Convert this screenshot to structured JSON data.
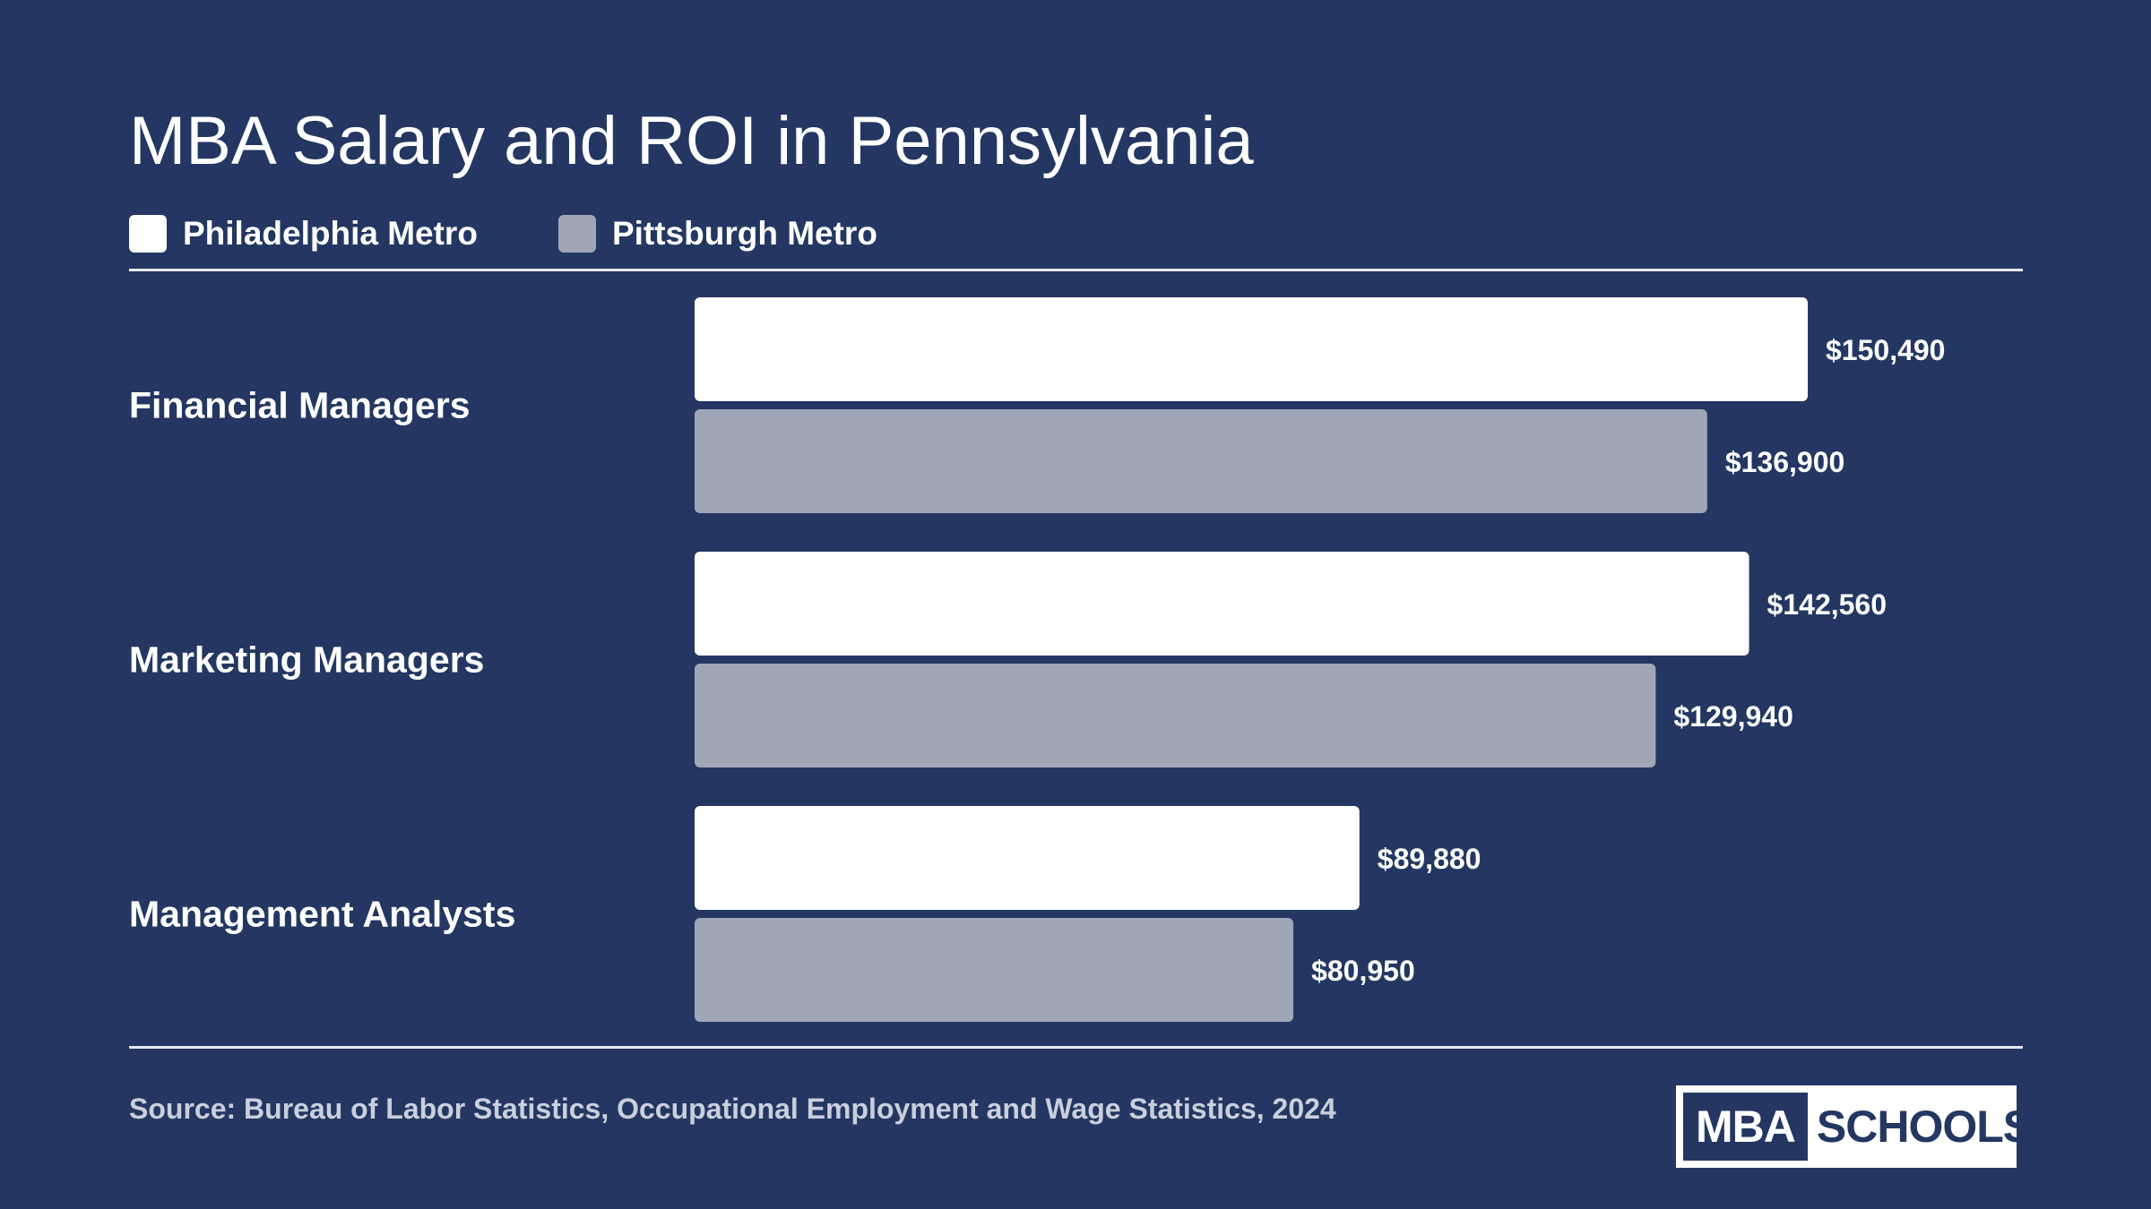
{
  "title": "MBA Salary and ROI in Pennsylvania",
  "legend": [
    {
      "label": "Philadelphia Metro",
      "color": "#ffffff"
    },
    {
      "label": "Pittsburgh Metro",
      "color": "#9ea6b8"
    }
  ],
  "source": "Source: Bureau of Labor Statistics, Occupational Employment and Wage Statistics, 2024",
  "logo": {
    "left": "MBA",
    "right": "SCHOOLS"
  },
  "colors": {
    "background": "#243762",
    "series1": "#ffffff",
    "series2": "#9ea6b8"
  },
  "chart_data": {
    "type": "bar",
    "orientation": "horizontal",
    "categories": [
      "Financial Managers",
      "Marketing Managers",
      "Management Analysts"
    ],
    "series": [
      {
        "name": "Philadelphia Metro",
        "values": [
          150490,
          142560,
          89880
        ],
        "labels": [
          "$150,490",
          "$142,560",
          "$89,880"
        ]
      },
      {
        "name": "Pittsburgh Metro",
        "values": [
          136900,
          129940,
          80950
        ],
        "labels": [
          "$136,900",
          "$129,940",
          "$80,950"
        ]
      }
    ],
    "xlim": [
      0,
      150490
    ],
    "legend_position": "top-left",
    "grid": false
  }
}
